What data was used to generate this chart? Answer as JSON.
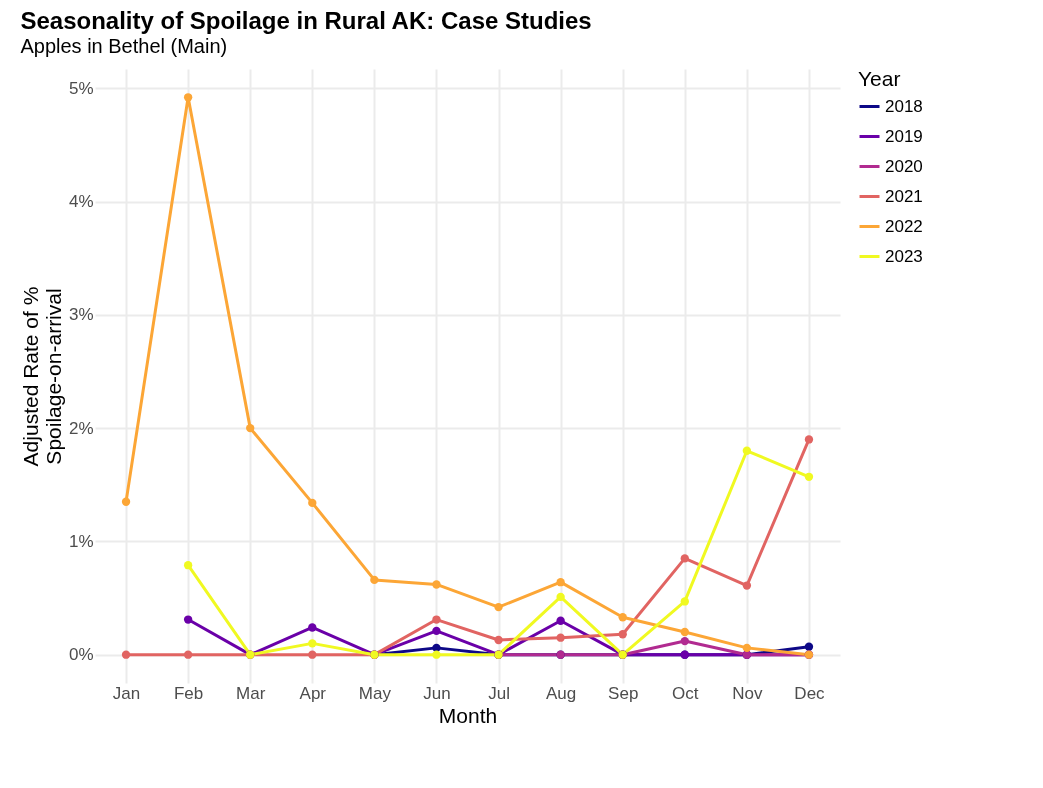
{
  "chart_data": {
    "type": "line",
    "title": "Seasonality of Spoilage in Rural AK: Case Studies",
    "subtitle": "Apples in Bethel (Main)",
    "xlabel": "Month",
    "ylabel": "Adjusted Rate of %\nSpoilage-on-arrival",
    "legend_title": "Year",
    "categories": [
      "Jan",
      "Feb",
      "Mar",
      "Apr",
      "May",
      "Jun",
      "Jul",
      "Aug",
      "Sep",
      "Oct",
      "Nov",
      "Dec"
    ],
    "series": [
      {
        "name": "2018",
        "color": "#0d0887",
        "values": [
          null,
          null,
          null,
          null,
          0,
          0.06,
          0,
          0,
          0,
          0,
          0,
          0.07
        ]
      },
      {
        "name": "2019",
        "color": "#6a00a8",
        "values": [
          null,
          0.31,
          0,
          0.24,
          0,
          0.21,
          0,
          0.3,
          0,
          0,
          0,
          0
        ]
      },
      {
        "name": "2020",
        "color": "#b12a90",
        "values": [
          null,
          null,
          null,
          null,
          null,
          null,
          0,
          0,
          0,
          0.12,
          0,
          0
        ]
      },
      {
        "name": "2021",
        "color": "#e16462",
        "values": [
          0,
          0,
          0,
          0,
          0,
          0.31,
          0.13,
          0.15,
          0.18,
          0.85,
          0.61,
          1.9
        ]
      },
      {
        "name": "2022",
        "color": "#fca636",
        "values": [
          1.35,
          4.92,
          2.0,
          1.34,
          0.66,
          0.62,
          0.42,
          0.64,
          0.33,
          0.2,
          0.06,
          0
        ]
      },
      {
        "name": "2023",
        "color": "#f0f921",
        "values": [
          null,
          0.79,
          0,
          0.1,
          0,
          0,
          0,
          0.51,
          0,
          0.47,
          1.8,
          1.57
        ]
      }
    ],
    "ylim": [
      -0.25,
      5.17
    ],
    "yticks": [
      {
        "value": 0,
        "label": "0%"
      },
      {
        "value": 1,
        "label": "1%"
      },
      {
        "value": 2,
        "label": "2%"
      },
      {
        "value": 3,
        "label": "3%"
      },
      {
        "value": 4,
        "label": "4%"
      },
      {
        "value": 5,
        "label": "5%"
      }
    ],
    "grid": true,
    "legend": "right",
    "marker": "circle",
    "line_style": "solid"
  }
}
